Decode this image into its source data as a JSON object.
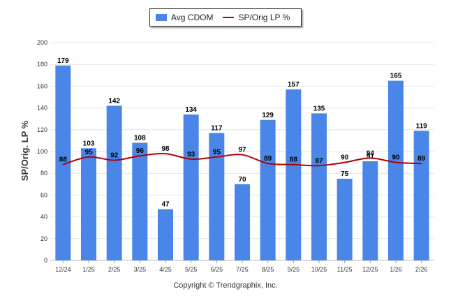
{
  "colors": {
    "bar": "#4a86e8",
    "line": "#b30000",
    "grid": "#e6e6e6",
    "axis": "#333333"
  },
  "chart_data": {
    "type": "bar",
    "categories": [
      "12/24",
      "1/25",
      "2/25",
      "3/25",
      "4/25",
      "5/25",
      "6/25",
      "7/25",
      "8/25",
      "9/25",
      "10/25",
      "11/25",
      "12/25",
      "1/26",
      "2/26"
    ],
    "series": [
      {
        "name": "Avg CDOM",
        "type": "bar",
        "values": [
          179,
          103,
          142,
          108,
          47,
          134,
          117,
          70,
          129,
          157,
          135,
          75,
          91,
          165,
          119
        ]
      },
      {
        "name": "SP/Orig LP %",
        "type": "line",
        "values": [
          88,
          95,
          92,
          96,
          98,
          93,
          95,
          97,
          89,
          88,
          87,
          90,
          94,
          90,
          89
        ]
      }
    ],
    "ylabel": "SP/Orig. LP %",
    "ylim": [
      0,
      200
    ],
    "yticks": [
      0,
      20,
      40,
      60,
      80,
      100,
      120,
      140,
      160,
      180,
      200
    ],
    "legend_position": "top-center"
  },
  "legend": {
    "bar_label": "Avg CDOM",
    "line_label": "SP/Orig LP %"
  },
  "footer": {
    "copyright": "Copyright © Trendgraphix, Inc."
  }
}
